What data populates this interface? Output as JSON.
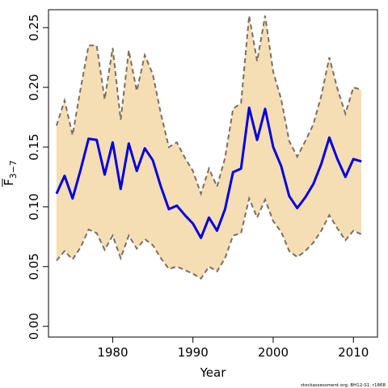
{
  "chart_data": {
    "type": "line",
    "title": "",
    "xlabel": "Year",
    "ylabel": {
      "base": "F",
      "subscript": "3−7"
    },
    "xlim": [
      1972,
      2013
    ],
    "ylim": [
      -0.009,
      0.265
    ],
    "x_ticks": [
      1980,
      1990,
      2000,
      2010
    ],
    "y_ticks": [
      0.0,
      0.05,
      0.1,
      0.15,
      0.2,
      0.25
    ],
    "y_tick_labels": [
      "0.00",
      "0.05",
      "0.10",
      "0.15",
      "0.20",
      "0.25"
    ],
    "grid": false,
    "legend": "none",
    "x": [
      1973,
      1974,
      1975,
      1976,
      1977,
      1978,
      1979,
      1980,
      1981,
      1982,
      1983,
      1984,
      1985,
      1986,
      1987,
      1988,
      1989,
      1990,
      1991,
      1992,
      1993,
      1994,
      1995,
      1996,
      1997,
      1998,
      1999,
      2000,
      2001,
      2002,
      2003,
      2004,
      2005,
      2006,
      2007,
      2008,
      2009,
      2010,
      2011
    ],
    "series": [
      {
        "role": "estimate",
        "values": [
          0.111,
          0.126,
          0.107,
          0.131,
          0.157,
          0.156,
          0.127,
          0.154,
          0.115,
          0.153,
          0.13,
          0.149,
          0.139,
          0.117,
          0.098,
          0.101,
          0.093,
          0.086,
          0.074,
          0.091,
          0.08,
          0.098,
          0.129,
          0.132,
          0.183,
          0.156,
          0.182,
          0.15,
          0.134,
          0.109,
          0.099,
          0.108,
          0.119,
          0.136,
          0.158,
          0.14,
          0.125,
          0.14,
          0.138
        ]
      },
      {
        "role": "upper_bound",
        "values": [
          0.168,
          0.189,
          0.16,
          0.199,
          0.235,
          0.235,
          0.19,
          0.233,
          0.173,
          0.231,
          0.197,
          0.227,
          0.211,
          0.178,
          0.15,
          0.154,
          0.141,
          0.13,
          0.111,
          0.132,
          0.117,
          0.141,
          0.182,
          0.187,
          0.26,
          0.222,
          0.26,
          0.213,
          0.19,
          0.155,
          0.142,
          0.155,
          0.169,
          0.193,
          0.225,
          0.199,
          0.178,
          0.2,
          0.198
        ]
      },
      {
        "role": "lower_bound",
        "values": [
          0.055,
          0.063,
          0.056,
          0.066,
          0.081,
          0.078,
          0.064,
          0.076,
          0.057,
          0.076,
          0.065,
          0.073,
          0.068,
          0.057,
          0.048,
          0.05,
          0.047,
          0.044,
          0.04,
          0.05,
          0.046,
          0.057,
          0.076,
          0.078,
          0.107,
          0.091,
          0.106,
          0.088,
          0.079,
          0.063,
          0.058,
          0.063,
          0.07,
          0.08,
          0.093,
          0.082,
          0.072,
          0.08,
          0.077
        ]
      }
    ],
    "colors": {
      "line": "#0000e0",
      "band_fill": "#f5deb3",
      "band_border": "#7a6e63",
      "frame": "#000000"
    }
  },
  "credit": "stockassessment.org, BH12-S1, r1868"
}
